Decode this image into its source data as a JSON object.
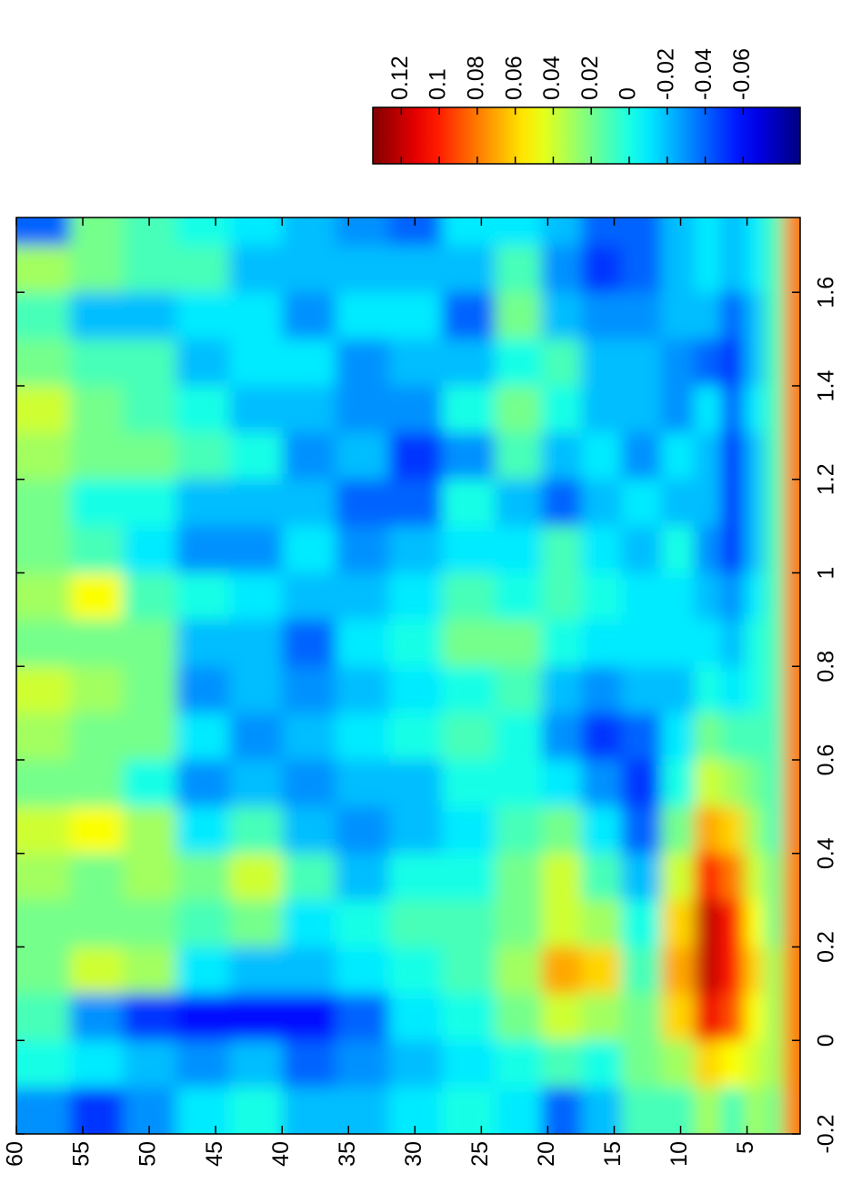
{
  "chart_data": {
    "type": "heatmap",
    "colormap": "jet",
    "x": [
      -0.15,
      -0.05,
      0.05,
      0.15,
      0.25,
      0.35,
      0.45,
      0.55,
      0.65,
      0.75,
      0.85,
      0.95,
      1.05,
      1.15,
      1.25,
      1.35,
      1.45,
      1.55,
      1.65,
      1.75
    ],
    "y": [
      1.5,
      3,
      4.5,
      6,
      8,
      10,
      13,
      16,
      19,
      22,
      26,
      30,
      34,
      38,
      42,
      46,
      50,
      54,
      58
    ],
    "values": [
      [
        0.08,
        0.08,
        0.08,
        0.08,
        0.08,
        0.08,
        0.08,
        0.08,
        0.08,
        0.08,
        0.08,
        0.08,
        0.08,
        0.08,
        0.08,
        0.08,
        0.08,
        0.08,
        0.08,
        0.08
      ],
      [
        0.02,
        0.03,
        0.03,
        0.03,
        0.02,
        0.02,
        0.01,
        0.01,
        0.01,
        0.01,
        0.01,
        0.01,
        0.01,
        0.01,
        0.01,
        0.01,
        0.01,
        0.01,
        0.01,
        0.01
      ],
      [
        0.03,
        0.04,
        0.05,
        0.06,
        0.05,
        0.04,
        0.03,
        0.02,
        0.01,
        0,
        0,
        -0.01,
        -0.02,
        -0.02,
        -0.02,
        -0.01,
        -0.02,
        -0.02,
        -0.01,
        -0.01
      ],
      [
        0.01,
        0.05,
        0.09,
        0.1,
        0.1,
        0.08,
        0.06,
        0.03,
        0.01,
        -0.01,
        -0.02,
        -0.03,
        -0.05,
        -0.05,
        -0.05,
        -0.04,
        -0.05,
        -0.04,
        -0.02,
        -0.02
      ],
      [
        0.03,
        0.06,
        0.11,
        0.12,
        0.12,
        0.1,
        0.07,
        0.04,
        0.02,
        0,
        -0.01,
        -0.02,
        -0.03,
        -0.02,
        -0.02,
        -0.01,
        -0.04,
        -0.02,
        -0.01,
        -0.01
      ],
      [
        0.01,
        0.03,
        0.06,
        0.07,
        0.06,
        0.04,
        0.02,
        0,
        -0.01,
        -0.02,
        -0.01,
        -0.01,
        0,
        -0.02,
        -0.01,
        -0.03,
        -0.03,
        -0.02,
        -0.02,
        -0.02
      ],
      [
        0.01,
        0.02,
        0.02,
        0.01,
        0,
        -0.02,
        -0.04,
        -0.05,
        -0.04,
        -0.02,
        -0.01,
        -0.01,
        -0.02,
        -0.01,
        -0.03,
        -0.02,
        -0.02,
        -0.03,
        -0.04,
        -0.04
      ],
      [
        -0.02,
        0,
        0.03,
        0.06,
        0.03,
        0.01,
        -0.01,
        -0.03,
        -0.05,
        -0.03,
        -0.01,
        0,
        -0.01,
        -0.02,
        -0.01,
        -0.02,
        -0.02,
        -0.03,
        -0.05,
        -0.04
      ],
      [
        -0.04,
        0.01,
        0.04,
        0.07,
        0.04,
        0.04,
        0.02,
        -0.01,
        -0.03,
        -0.02,
        0,
        0.01,
        0.01,
        -0.04,
        -0.02,
        0,
        0.01,
        -0.02,
        -0.03,
        -0.02
      ],
      [
        -0.01,
        0,
        0.02,
        0.03,
        0.02,
        0.02,
        0.01,
        0,
        0,
        0.01,
        0.02,
        0,
        -0.01,
        -0.02,
        0.01,
        0.02,
        0,
        0.02,
        0.01,
        -0.01
      ],
      [
        0,
        -0.01,
        0,
        0.01,
        0.01,
        0,
        -0.01,
        0,
        0.01,
        0,
        0.02,
        0.01,
        -0.01,
        0,
        -0.03,
        0,
        -0.02,
        -0.04,
        -0.02,
        -0.01
      ],
      [
        -0.01,
        -0.02,
        -0.01,
        0,
        0.01,
        0,
        -0.02,
        -0.02,
        0,
        -0.01,
        0,
        -0.01,
        -0.02,
        -0.04,
        -0.05,
        -0.03,
        -0.02,
        -0.01,
        -0.02,
        -0.04
      ],
      [
        -0.02,
        -0.03,
        -0.04,
        -0.01,
        0,
        -0.02,
        -0.03,
        -0.02,
        -0.01,
        -0.02,
        -0.01,
        -0.02,
        -0.03,
        -0.04,
        -0.02,
        -0.03,
        -0.03,
        -0.01,
        -0.02,
        -0.03
      ],
      [
        -0.02,
        -0.04,
        -0.06,
        -0.02,
        -0.01,
        0.01,
        -0.02,
        -0.03,
        -0.02,
        -0.03,
        -0.04,
        -0.02,
        -0.01,
        -0.02,
        -0.03,
        -0.02,
        -0.01,
        -0.03,
        -0.02,
        -0.02
      ],
      [
        0,
        -0.02,
        -0.06,
        -0.02,
        0.02,
        0.04,
        0.01,
        -0.02,
        -0.03,
        -0.02,
        -0.02,
        -0.01,
        -0.03,
        -0.02,
        0,
        -0.02,
        -0.01,
        -0.01,
        -0.02,
        -0.01
      ],
      [
        -0.01,
        -0.03,
        -0.06,
        -0.01,
        0.01,
        0.02,
        -0.01,
        -0.03,
        -0.01,
        -0.03,
        -0.02,
        0,
        -0.03,
        -0.02,
        0.01,
        0,
        -0.02,
        -0.01,
        0.01,
        0
      ],
      [
        -0.03,
        -0.02,
        -0.05,
        0.03,
        0.02,
        0.03,
        0.03,
        0,
        0.02,
        0.02,
        0.02,
        0.01,
        -0.01,
        0,
        0.02,
        0.01,
        0.01,
        -0.02,
        0.01,
        0.01
      ],
      [
        -0.05,
        -0.01,
        -0.03,
        0.04,
        0.02,
        0.02,
        0.05,
        0.02,
        0.02,
        0.03,
        0.02,
        0.05,
        0.01,
        0,
        0.02,
        0.02,
        0.01,
        -0.02,
        0.02,
        0.02
      ],
      [
        -0.03,
        0,
        0.01,
        0.02,
        0.02,
        0.03,
        0.04,
        0.02,
        0.03,
        0.04,
        0.02,
        0.03,
        0.02,
        0.02,
        0.03,
        0.04,
        0.02,
        0.01,
        0.03,
        -0.04
      ]
    ],
    "xlim": [
      -0.2,
      1.76
    ],
    "xticks": [
      -0.2,
      0,
      0.2,
      0.4,
      0.6,
      0.8,
      1,
      1.2,
      1.4,
      1.6
    ],
    "ylim": [
      1,
      60
    ],
    "yticks": [
      5,
      10,
      15,
      20,
      25,
      30,
      35,
      40,
      45,
      50,
      55,
      60
    ],
    "clim": [
      -0.09,
      0.135
    ],
    "colorbar_ticks": [
      0.12,
      0.1,
      0.08,
      0.06,
      0.04,
      0.02,
      0,
      -0.02,
      -0.04,
      -0.06
    ]
  }
}
